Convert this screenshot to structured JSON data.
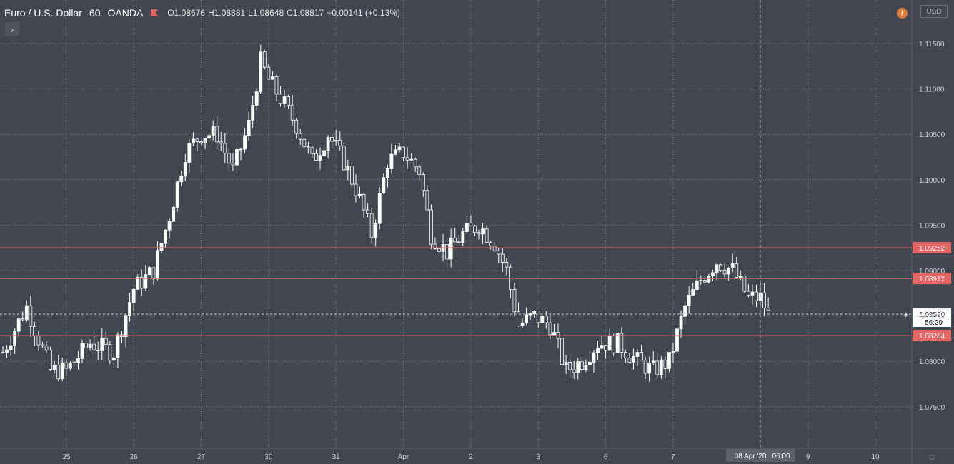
{
  "header": {
    "symbol": "Euro / U.S. Dollar",
    "interval": "60",
    "source": "OANDA",
    "open": "O1.08676",
    "high": "H1.08881",
    "low": "L1.08648",
    "close": "C1.08817",
    "change": "+0.00141 (+0.13%)"
  },
  "currency_button": "USD",
  "warning_icon": "!",
  "toggle_icon": "›",
  "settings_icon": "☼",
  "colors": {
    "background": "#434651",
    "candle": "#ffffff",
    "level_line": "#e06666",
    "level_label_bg": "#e06666",
    "grid": "#7a7d87",
    "crosshair": "#9aa0aa"
  },
  "chart_data": {
    "type": "candlestick",
    "title": "Euro / U.S. Dollar",
    "interval": "60",
    "ylim": [
      1.0725,
      1.117
    ],
    "y_ticks": [
      "1.11500",
      "1.11000",
      "1.10500",
      "1.10000",
      "1.09500",
      "1.09000",
      "1.08500",
      "1.08000",
      "1.07500"
    ],
    "y_tick_values": [
      1.115,
      1.11,
      1.105,
      1.1,
      1.095,
      1.09,
      1.085,
      1.08,
      1.075
    ],
    "x_ticks": [
      "25",
      "26",
      "27",
      "30",
      "31",
      "Apr",
      "2",
      "3",
      "6",
      "7",
      "9",
      "10"
    ],
    "x_tick_candle_index": [
      16,
      33,
      50,
      67,
      84,
      101,
      118,
      135,
      152,
      169,
      203,
      220
    ],
    "horizontal_levels": [
      {
        "value": 1.09252,
        "label": "1.09252"
      },
      {
        "value": 1.08912,
        "label": "1.08912"
      },
      {
        "value": 1.08284,
        "label": "1.08284"
      }
    ],
    "current_price": {
      "value": 1.0852,
      "label": "1.08520",
      "countdown": "56:29"
    },
    "crosshair": {
      "date_label": "08 Apr '20",
      "time_label": "06:00",
      "candle_index": 191
    },
    "candles_shown": 194,
    "close_path": [
      [
        0,
        1.081
      ],
      [
        6,
        1.086
      ],
      [
        12,
        1.079
      ],
      [
        16,
        1.079
      ],
      [
        22,
        1.082
      ],
      [
        28,
        1.081
      ],
      [
        33,
        1.088
      ],
      [
        38,
        1.09
      ],
      [
        42,
        1.096
      ],
      [
        46,
        1.103
      ],
      [
        50,
        1.105
      ],
      [
        54,
        1.105
      ],
      [
        58,
        1.101
      ],
      [
        62,
        1.106
      ],
      [
        65,
        1.113
      ],
      [
        67,
        1.111
      ],
      [
        70,
        1.109
      ],
      [
        74,
        1.106
      ],
      [
        78,
        1.102
      ],
      [
        82,
        1.105
      ],
      [
        86,
        1.102
      ],
      [
        89,
        1.099
      ],
      [
        93,
        1.094
      ],
      [
        97,
        1.102
      ],
      [
        101,
        1.103
      ],
      [
        105,
        1.101
      ],
      [
        108,
        1.094
      ],
      [
        112,
        1.092
      ],
      [
        116,
        1.094
      ],
      [
        120,
        1.095
      ],
      [
        124,
        1.093
      ],
      [
        127,
        1.09
      ],
      [
        130,
        1.084
      ],
      [
        134,
        1.085
      ],
      [
        138,
        1.084
      ],
      [
        142,
        1.079
      ],
      [
        146,
        1.08
      ],
      [
        150,
        1.082
      ],
      [
        155,
        1.082
      ],
      [
        160,
        1.08
      ],
      [
        164,
        1.079
      ],
      [
        168,
        1.08
      ],
      [
        172,
        1.086
      ],
      [
        176,
        1.089
      ],
      [
        180,
        1.091
      ],
      [
        184,
        1.09
      ],
      [
        188,
        1.087
      ],
      [
        191,
        1.087
      ],
      [
        193,
        1.0852
      ]
    ]
  }
}
